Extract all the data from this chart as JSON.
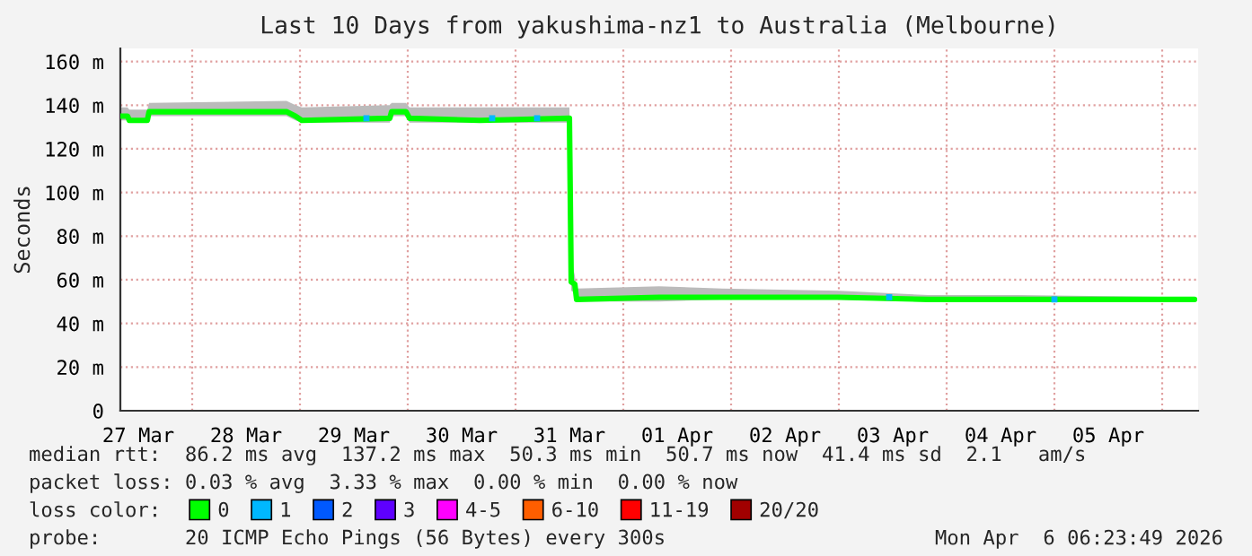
{
  "chart_data": {
    "type": "line",
    "title": "Last 10 Days from yakushima-nz1 to Australia (Melbourne)",
    "ylabel": "Seconds",
    "xlim": [
      "2026-03-27T08:00",
      "2026-04-06T08:00"
    ],
    "ylim": [
      0,
      166
    ],
    "xticks": [
      {
        "value": "2026-03-27T12:00",
        "label": "27 Mar"
      },
      {
        "value": "2026-03-28T12:00",
        "label": "28 Mar"
      },
      {
        "value": "2026-03-29T12:00",
        "label": "29 Mar"
      },
      {
        "value": "2026-03-30T12:00",
        "label": "30 Mar"
      },
      {
        "value": "2026-03-31T12:00",
        "label": "31 Mar"
      },
      {
        "value": "2026-04-01T12:00",
        "label": "01 Apr"
      },
      {
        "value": "2026-04-02T12:00",
        "label": "02 Apr"
      },
      {
        "value": "2026-04-03T12:00",
        "label": "03 Apr"
      },
      {
        "value": "2026-04-04T12:00",
        "label": "04 Apr"
      },
      {
        "value": "2026-04-05T12:00",
        "label": "05 Apr"
      },
      {
        "value": "2026-03-28T00:00",
        "label": null
      },
      {
        "value": "2026-03-29T00:00",
        "label": null
      },
      {
        "value": "2026-03-30T00:00",
        "label": null
      },
      {
        "value": "2026-03-31T00:00",
        "label": null
      },
      {
        "value": "2026-04-01T00:00",
        "label": null
      },
      {
        "value": "2026-04-02T00:00",
        "label": null
      },
      {
        "value": "2026-04-03T00:00",
        "label": null
      },
      {
        "value": "2026-04-04T00:00",
        "label": null
      },
      {
        "value": "2026-04-05T00:00",
        "label": null
      },
      {
        "value": "2026-04-06T00:00",
        "label": null
      }
    ],
    "yticks": [
      {
        "value": 0,
        "label": "0"
      },
      {
        "value": 20,
        "label": "20 m"
      },
      {
        "value": 40,
        "label": "40 m"
      },
      {
        "value": 60,
        "label": "60 m"
      },
      {
        "value": 80,
        "label": "80 m"
      },
      {
        "value": 100,
        "label": "100 m"
      },
      {
        "value": 120,
        "label": "120 m"
      },
      {
        "value": 140,
        "label": "140 m"
      },
      {
        "value": 160,
        "label": "160 m"
      }
    ],
    "grid": true,
    "legend": "bottom",
    "series": [
      {
        "name": "0",
        "color": "#00ff00",
        "x": [
          "2026-03-27T08:00",
          "2026-03-27T09:36",
          "2026-03-27T10:00",
          "2026-03-27T14:00",
          "2026-03-27T14:24",
          "2026-03-28T21:00",
          "2026-03-28T23:00",
          "2026-03-29T00:24",
          "2026-03-29T20:00",
          "2026-03-29T20:24",
          "2026-03-29T23:36",
          "2026-03-30T00:24",
          "2026-03-30T16:00",
          "2026-03-31T12:00",
          "2026-03-31T12:24",
          "2026-03-31T13:12",
          "2026-03-31T13:36",
          "2026-04-01T08:00",
          "2026-04-01T22:00",
          "2026-04-03T00:00",
          "2026-04-03T20:00",
          "2026-04-04T16:00",
          "2026-04-06T07:12"
        ],
        "values": [
          135,
          135,
          133,
          133,
          137,
          137,
          135,
          133,
          134,
          137,
          137,
          134,
          133,
          134,
          59,
          58,
          51,
          52,
          52,
          52,
          51,
          51,
          51
        ],
        "upper": [
          139,
          139,
          138,
          138,
          141,
          142,
          140,
          139,
          140,
          141,
          141,
          139,
          139,
          139,
          69,
          62,
          56,
          57,
          56,
          55,
          53,
          53,
          52
        ],
        "lower": [
          133,
          133,
          132,
          132,
          135,
          135,
          133,
          132,
          132,
          135,
          135,
          132,
          132,
          132,
          55,
          54,
          50,
          50,
          51,
          51,
          50,
          50,
          50
        ]
      },
      {
        "name": "1",
        "color": "#00b8ff",
        "type": "scatter",
        "marker": "square",
        "x": [
          "2026-03-29T14:48",
          "2026-03-30T18:48",
          "2026-03-31T04:48",
          "2026-04-03T11:12",
          "2026-04-05T00:00"
        ],
        "values": [
          134,
          134,
          134,
          52,
          51
        ]
      },
      {
        "name": "2",
        "color": "#0059ff",
        "type": "scatter",
        "marker": "square"
      },
      {
        "name": "3",
        "color": "#5e00ff",
        "type": "scatter",
        "marker": "square"
      },
      {
        "name": "4-5",
        "color": "#ff00ff",
        "type": "scatter",
        "marker": "square"
      },
      {
        "name": "6-10",
        "color": "#ff5e00",
        "type": "scatter",
        "marker": "square"
      },
      {
        "name": "11-19",
        "color": "#ff0000",
        "type": "scatter",
        "marker": "square"
      },
      {
        "name": "20/20",
        "color": "#a10000",
        "type": "scatter",
        "marker": "square"
      }
    ],
    "annotations": [
      "median rtt:  86.2 ms avg  137.2 ms max  50.3 ms min  50.7 ms now  41.4 ms sd  2.1   am/s",
      "packet loss: 0.03 % avg  3.33 % max  0.00 % min  0.00 % now",
      "loss color:",
      "probe:       20 ICMP Echo Pings (56 Bytes) every 300s",
      "Mon Apr  6 06:23:49 2026"
    ]
  }
}
